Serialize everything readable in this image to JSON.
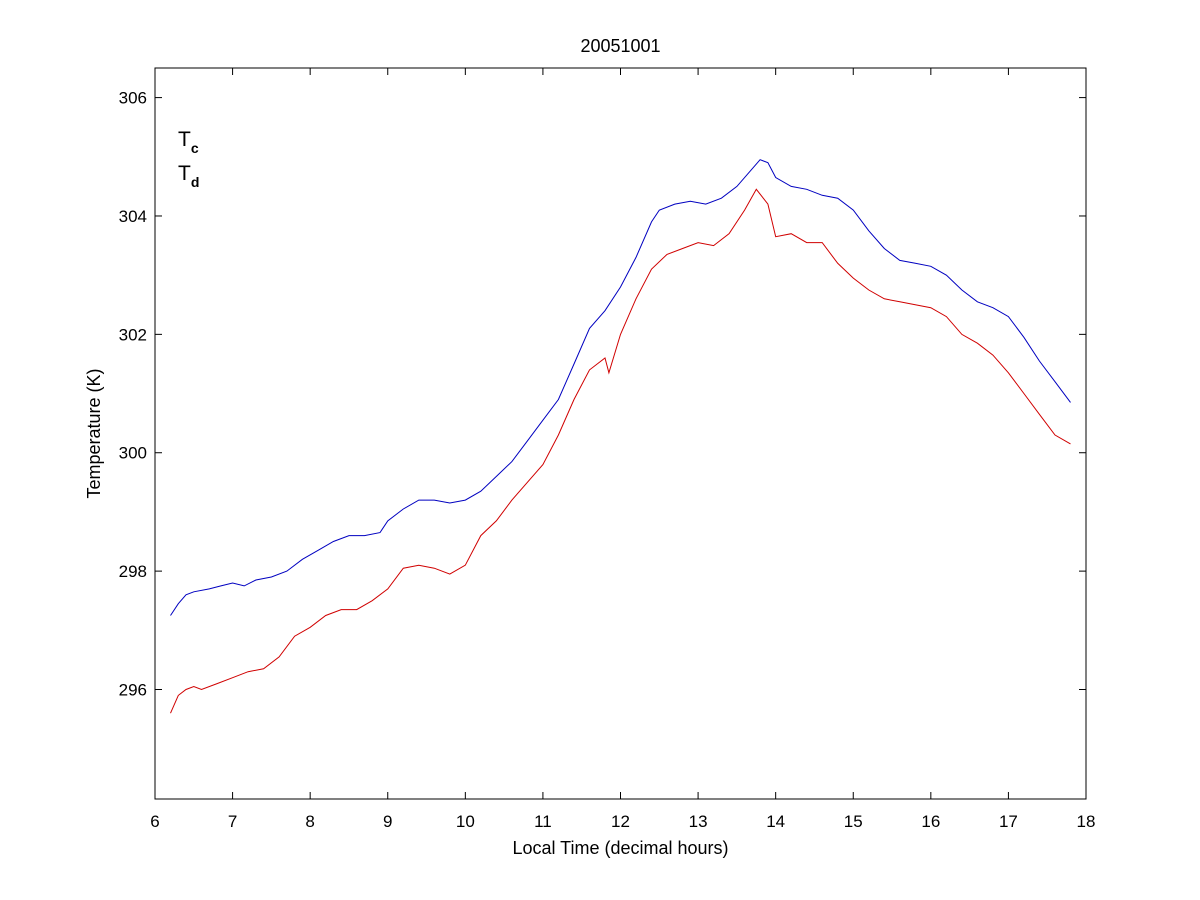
{
  "chart_data": {
    "type": "line",
    "title": "20051001",
    "xlabel": "Local Time (decimal hours)",
    "ylabel": "Temperature (K)",
    "xlim": [
      6,
      18
    ],
    "ylim": [
      294.15,
      306.5
    ],
    "xticks": [
      6,
      7,
      8,
      9,
      10,
      11,
      12,
      13,
      14,
      15,
      16,
      17,
      18
    ],
    "yticks": [
      296,
      298,
      300,
      302,
      304,
      306
    ],
    "grid": false,
    "legend_position": "top-left",
    "series": [
      {
        "name": "Tc",
        "label_main": "T",
        "label_sub": "c",
        "color": "#0000c0",
        "x": [
          6.2,
          6.3,
          6.4,
          6.5,
          6.7,
          6.85,
          7.0,
          7.15,
          7.3,
          7.5,
          7.7,
          7.9,
          8.1,
          8.3,
          8.5,
          8.7,
          8.9,
          9.0,
          9.2,
          9.4,
          9.6,
          9.8,
          10.0,
          10.2,
          10.4,
          10.6,
          10.8,
          11.0,
          11.2,
          11.4,
          11.6,
          11.8,
          12.0,
          12.2,
          12.4,
          12.5,
          12.7,
          12.9,
          13.1,
          13.3,
          13.5,
          13.7,
          13.8,
          13.9,
          14.0,
          14.2,
          14.4,
          14.6,
          14.8,
          15.0,
          15.2,
          15.4,
          15.6,
          15.8,
          16.0,
          16.2,
          16.4,
          16.6,
          16.8,
          17.0,
          17.2,
          17.4,
          17.6,
          17.8
        ],
        "y": [
          297.25,
          297.45,
          297.6,
          297.65,
          297.7,
          297.75,
          297.8,
          297.75,
          297.85,
          297.9,
          298.0,
          298.2,
          298.35,
          298.5,
          298.6,
          298.6,
          298.65,
          298.85,
          299.05,
          299.2,
          299.2,
          299.15,
          299.2,
          299.35,
          299.6,
          299.85,
          300.2,
          300.55,
          300.9,
          301.5,
          302.1,
          302.4,
          302.8,
          303.3,
          303.9,
          304.1,
          304.2,
          304.25,
          304.2,
          304.3,
          304.5,
          304.8,
          304.95,
          304.9,
          304.65,
          304.5,
          304.45,
          304.35,
          304.3,
          304.1,
          303.75,
          303.45,
          303.25,
          303.2,
          303.15,
          303.0,
          302.75,
          302.55,
          302.45,
          302.3,
          301.95,
          301.55,
          301.2,
          300.85
        ]
      },
      {
        "name": "Td",
        "label_main": "T",
        "label_sub": "d",
        "color": "#d00000",
        "x": [
          6.2,
          6.3,
          6.4,
          6.5,
          6.6,
          6.8,
          7.0,
          7.2,
          7.4,
          7.6,
          7.8,
          8.0,
          8.2,
          8.4,
          8.6,
          8.8,
          9.0,
          9.2,
          9.4,
          9.6,
          9.8,
          10.0,
          10.2,
          10.4,
          10.6,
          10.8,
          11.0,
          11.2,
          11.4,
          11.6,
          11.8,
          11.85,
          12.0,
          12.2,
          12.4,
          12.6,
          12.8,
          13.0,
          13.2,
          13.4,
          13.6,
          13.75,
          13.9,
          14.0,
          14.2,
          14.4,
          14.6,
          14.8,
          15.0,
          15.2,
          15.4,
          15.6,
          15.8,
          16.0,
          16.2,
          16.4,
          16.6,
          16.8,
          17.0,
          17.2,
          17.4,
          17.6,
          17.8
        ],
        "y": [
          295.6,
          295.9,
          296.0,
          296.05,
          296.0,
          296.1,
          296.2,
          296.3,
          296.35,
          296.55,
          296.9,
          297.05,
          297.25,
          297.35,
          297.35,
          297.5,
          297.7,
          298.05,
          298.1,
          298.05,
          297.95,
          298.1,
          298.6,
          298.85,
          299.2,
          299.5,
          299.8,
          300.3,
          300.9,
          301.4,
          301.6,
          301.35,
          302.0,
          302.6,
          303.1,
          303.35,
          303.45,
          303.55,
          303.5,
          303.7,
          304.1,
          304.45,
          304.2,
          303.65,
          303.7,
          303.55,
          303.55,
          303.2,
          302.95,
          302.75,
          302.6,
          302.55,
          302.5,
          302.45,
          302.3,
          302.0,
          301.85,
          301.65,
          301.35,
          301.0,
          300.65,
          300.3,
          300.15
        ]
      }
    ]
  }
}
